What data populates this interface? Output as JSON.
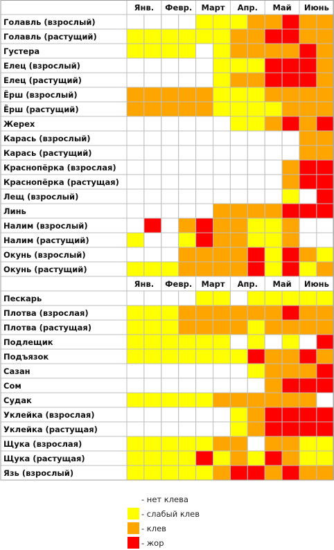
{
  "chart_data": {
    "type": "heatmap",
    "month_labels": [
      "Янв.",
      "Февр.",
      "Март",
      "Апр.",
      "Май",
      "Июнь"
    ],
    "levels": [
      "none",
      "weak",
      "bite",
      "feed"
    ],
    "level_colors": {
      "none": "#ffffff",
      "weak": "#ffff00",
      "bite": "#ffa500",
      "feed": "#ff0000"
    },
    "groups": [
      {
        "rows": [
          {
            "name": "Голавль (взрослый)",
            "values": [
              0,
              0,
              0,
              0,
              1,
              1,
              1,
              2,
              2,
              3,
              2,
              2
            ]
          },
          {
            "name": "Голавль (растущий)",
            "values": [
              1,
              1,
              1,
              1,
              1,
              1,
              2,
              2,
              3,
              3,
              2,
              2
            ]
          },
          {
            "name": "Густера",
            "values": [
              1,
              1,
              1,
              1,
              0,
              1,
              2,
              2,
              2,
              2,
              3,
              2
            ]
          },
          {
            "name": "Елец (взрослый)",
            "values": [
              0,
              0,
              0,
              0,
              0,
              1,
              1,
              1,
              3,
              3,
              3,
              2
            ]
          },
          {
            "name": "Елец (растущий)",
            "values": [
              0,
              0,
              0,
              0,
              0,
              1,
              2,
              2,
              3,
              3,
              3,
              2
            ]
          },
          {
            "name": "Ёрш (взрослый)",
            "values": [
              2,
              2,
              2,
              2,
              2,
              1,
              1,
              1,
              2,
              2,
              2,
              2
            ]
          },
          {
            "name": "Ёрш (растущий)",
            "values": [
              2,
              2,
              2,
              2,
              2,
              1,
              1,
              1,
              1,
              2,
              2,
              2
            ]
          },
          {
            "name": "Жерех",
            "values": [
              0,
              0,
              0,
              0,
              0,
              0,
              1,
              1,
              2,
              3,
              2,
              3
            ]
          },
          {
            "name": "Карась (взрослый)",
            "values": [
              0,
              0,
              0,
              0,
              0,
              0,
              0,
              0,
              0,
              0,
              2,
              2
            ]
          },
          {
            "name": "Карась (растущий)",
            "values": [
              0,
              0,
              0,
              0,
              0,
              0,
              0,
              0,
              0,
              0,
              2,
              2
            ]
          },
          {
            "name": "Краснопёрка (взрослая)",
            "values": [
              0,
              0,
              0,
              0,
              0,
              0,
              0,
              0,
              0,
              2,
              3,
              3
            ]
          },
          {
            "name": "Краснопёрка (растущая)",
            "values": [
              0,
              0,
              0,
              0,
              0,
              0,
              0,
              0,
              0,
              2,
              3,
              3
            ]
          },
          {
            "name": "Лещ (взрослый)",
            "values": [
              0,
              0,
              0,
              0,
              0,
              0,
              0,
              0,
              0,
              1,
              0,
              3
            ]
          },
          {
            "name": "Линь",
            "values": [
              0,
              0,
              0,
              0,
              0,
              2,
              2,
              2,
              2,
              3,
              3,
              3
            ]
          },
          {
            "name": "Налим (взрослый)",
            "values": [
              0,
              3,
              0,
              2,
              3,
              2,
              2,
              1,
              1,
              2,
              0,
              0
            ]
          },
          {
            "name": "Налим (растущий)",
            "values": [
              1,
              0,
              0,
              1,
              3,
              2,
              2,
              1,
              1,
              2,
              0,
              0
            ]
          },
          {
            "name": "Окунь (взрослый)",
            "values": [
              0,
              0,
              0,
              2,
              2,
              2,
              2,
              3,
              1,
              3,
              2,
              1
            ]
          },
          {
            "name": "Окунь (растущий)",
            "values": [
              1,
              1,
              1,
              2,
              2,
              2,
              2,
              3,
              1,
              3,
              1,
              2
            ]
          }
        ]
      },
      {
        "rows": [
          {
            "name": "Пескарь",
            "values": [
              0,
              0,
              0,
              0,
              1,
              1,
              0,
              1,
              1,
              1,
              1,
              1
            ]
          },
          {
            "name": "Плотва (взрослая)",
            "values": [
              1,
              1,
              1,
              2,
              2,
              2,
              2,
              2,
              2,
              3,
              2,
              2
            ]
          },
          {
            "name": "Плотва (растущая)",
            "values": [
              1,
              1,
              1,
              2,
              2,
              2,
              2,
              1,
              2,
              2,
              2,
              2
            ]
          },
          {
            "name": "Подлещик",
            "values": [
              1,
              1,
              1,
              1,
              1,
              1,
              0,
              1,
              0,
              1,
              0,
              3
            ]
          },
          {
            "name": "Подъязок",
            "values": [
              1,
              1,
              1,
              1,
              1,
              1,
              1,
              3,
              2,
              2,
              3,
              2
            ]
          },
          {
            "name": "Сазан",
            "values": [
              0,
              0,
              0,
              0,
              0,
              0,
              0,
              1,
              2,
              2,
              2,
              3
            ]
          },
          {
            "name": "Сом",
            "values": [
              0,
              0,
              0,
              0,
              0,
              0,
              0,
              0,
              2,
              3,
              3,
              3
            ]
          },
          {
            "name": "Судак",
            "values": [
              1,
              1,
              1,
              1,
              1,
              2,
              2,
              2,
              2,
              2,
              2,
              0
            ]
          },
          {
            "name": "Уклейка (взрослая)",
            "values": [
              0,
              0,
              0,
              0,
              0,
              0,
              1,
              2,
              3,
              3,
              3,
              3
            ]
          },
          {
            "name": "Уклейка (растущая)",
            "values": [
              0,
              0,
              0,
              0,
              0,
              0,
              1,
              2,
              3,
              3,
              3,
              3
            ]
          },
          {
            "name": "Щука (взрослая)",
            "values": [
              1,
              1,
              1,
              1,
              1,
              2,
              2,
              0,
              2,
              2,
              1,
              1
            ]
          },
          {
            "name": "Щука (растущая)",
            "values": [
              1,
              1,
              1,
              1,
              3,
              1,
              2,
              1,
              3,
              2,
              1,
              1
            ]
          },
          {
            "name": "Язь (взрослый)",
            "values": [
              1,
              1,
              1,
              1,
              1,
              2,
              3,
              3,
              2,
              3,
              2,
              2
            ]
          }
        ]
      }
    ],
    "legend": [
      {
        "level": "none",
        "label": "- нет клева"
      },
      {
        "level": "weak",
        "label": "- слабый клев"
      },
      {
        "level": "bite",
        "label": "- клев"
      },
      {
        "level": "feed",
        "label": "- жор"
      }
    ]
  }
}
